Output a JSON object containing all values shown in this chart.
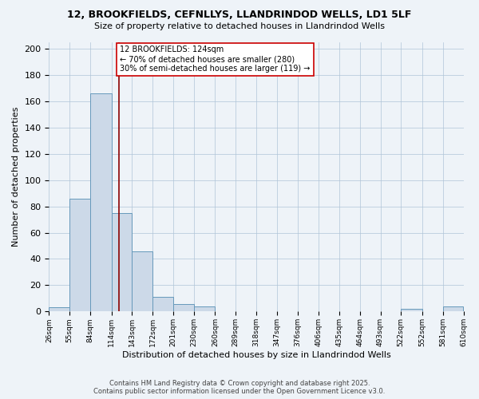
{
  "title_line1": "12, BROOKFIELDS, CEFNLLYS, LLANDRINDOD WELLS, LD1 5LF",
  "title_line2": "Size of property relative to detached houses in Llandrindod Wells",
  "xlabel": "Distribution of detached houses by size in Llandrindod Wells",
  "ylabel": "Number of detached properties",
  "bin_edges": [
    26,
    55,
    84,
    114,
    143,
    172,
    201,
    230,
    260,
    289,
    318,
    347,
    376,
    406,
    435,
    464,
    493,
    522,
    552,
    581,
    610
  ],
  "bin_labels": [
    "26sqm",
    "55sqm",
    "84sqm",
    "114sqm",
    "143sqm",
    "172sqm",
    "201sqm",
    "230sqm",
    "260sqm",
    "289sqm",
    "318sqm",
    "347sqm",
    "376sqm",
    "406sqm",
    "435sqm",
    "464sqm",
    "493sqm",
    "522sqm",
    "552sqm",
    "581sqm",
    "610sqm"
  ],
  "bar_heights": [
    3,
    86,
    166,
    75,
    46,
    11,
    6,
    4,
    0,
    0,
    0,
    0,
    0,
    0,
    0,
    0,
    0,
    2,
    0,
    4
  ],
  "bar_color": "#ccd9e8",
  "bar_edge_color": "#6699bb",
  "grid_color": "#b0c4d8",
  "background_color": "#eef3f8",
  "vline_x": 124,
  "vline_color": "#8b0000",
  "annotation_text": "12 BROOKFIELDS: 124sqm\n← 70% of detached houses are smaller (280)\n30% of semi-detached houses are larger (119) →",
  "annotation_box_color": "#ffffff",
  "annotation_box_edge": "#cc0000",
  "ylim": [
    0,
    205
  ],
  "yticks": [
    0,
    20,
    40,
    60,
    80,
    100,
    120,
    140,
    160,
    180,
    200
  ],
  "footer_line1": "Contains HM Land Registry data © Crown copyright and database right 2025.",
  "footer_line2": "Contains public sector information licensed under the Open Government Licence v3.0."
}
